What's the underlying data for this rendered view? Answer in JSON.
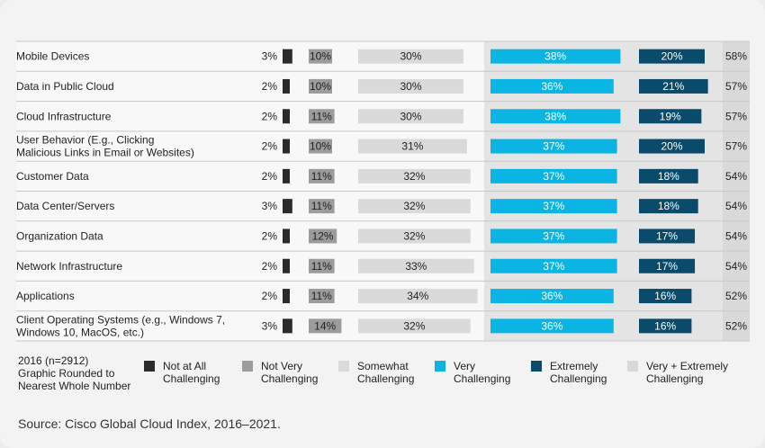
{
  "chart_data": {
    "type": "bar",
    "categories": [
      "Mobile Devices",
      "Data in Public Cloud",
      "Cloud Infrastructure",
      "User Behavior (E.g., Clicking Malicious Links in Email or Websites)",
      "Customer Data",
      "Data Center/Servers",
      "Organization Data",
      "Network Infrastructure",
      "Applications",
      "Client Operating Systems (e.g., Windows 7, Windows 10, MacOS, etc.)"
    ],
    "category_lines": [
      [
        "Mobile Devices"
      ],
      [
        "Data in Public Cloud"
      ],
      [
        "Cloud Infrastructure"
      ],
      [
        "User Behavior (E.g., Clicking",
        "Malicious Links in Email or Websites)"
      ],
      [
        "Customer Data"
      ],
      [
        "Data Center/Servers"
      ],
      [
        "Organization Data"
      ],
      [
        "Network Infrastructure"
      ],
      [
        "Applications"
      ],
      [
        "Client Operating Systems (e.g., Windows 7,",
        "Windows 10, MacOS, etc.)"
      ]
    ],
    "series": [
      {
        "name": "Not at All Challenging",
        "color": "#2b2b2b",
        "values": [
          3,
          2,
          2,
          2,
          2,
          3,
          2,
          2,
          2,
          3
        ]
      },
      {
        "name": "Not Very Challenging",
        "color": "#9c9c9c",
        "values": [
          10,
          10,
          11,
          10,
          11,
          11,
          12,
          11,
          11,
          14
        ]
      },
      {
        "name": "Somewhat Challenging",
        "color": "#dadada",
        "values": [
          30,
          30,
          30,
          31,
          32,
          32,
          32,
          33,
          34,
          32
        ]
      },
      {
        "name": "Very Challenging",
        "color": "#0bb5e3",
        "values": [
          38,
          36,
          38,
          37,
          37,
          37,
          37,
          37,
          36,
          36
        ]
      },
      {
        "name": "Extremely Challenging",
        "color": "#0a4a6b",
        "values": [
          20,
          21,
          19,
          20,
          18,
          18,
          17,
          17,
          16,
          16
        ]
      }
    ],
    "combined": {
      "name": "Very + Extremely Challenging",
      "color": "#d9d9d9",
      "values": [
        58,
        57,
        57,
        57,
        54,
        54,
        54,
        54,
        52,
        52
      ]
    },
    "note": [
      "2016 (n=2912)",
      "Graphic Rounded to",
      "Nearest Whole Number"
    ],
    "value_suffix": "%"
  },
  "legend": [
    {
      "lines": [
        "Not at All",
        "Challenging"
      ],
      "color": "#2b2b2b"
    },
    {
      "lines": [
        "Not Very",
        "Challenging"
      ],
      "color": "#9c9c9c"
    },
    {
      "lines": [
        "Somewhat",
        "Challenging"
      ],
      "color": "#dadada"
    },
    {
      "lines": [
        "Very",
        "Challenging"
      ],
      "color": "#0bb5e3"
    },
    {
      "lines": [
        "Extremely",
        "Challenging"
      ],
      "color": "#0a4a6b"
    },
    {
      "lines": [
        "Very + Extremely",
        "Challenging"
      ],
      "color": "#d9d9d9"
    }
  ],
  "source": "Source: Cisco Global Cloud Index, 2016–2021."
}
